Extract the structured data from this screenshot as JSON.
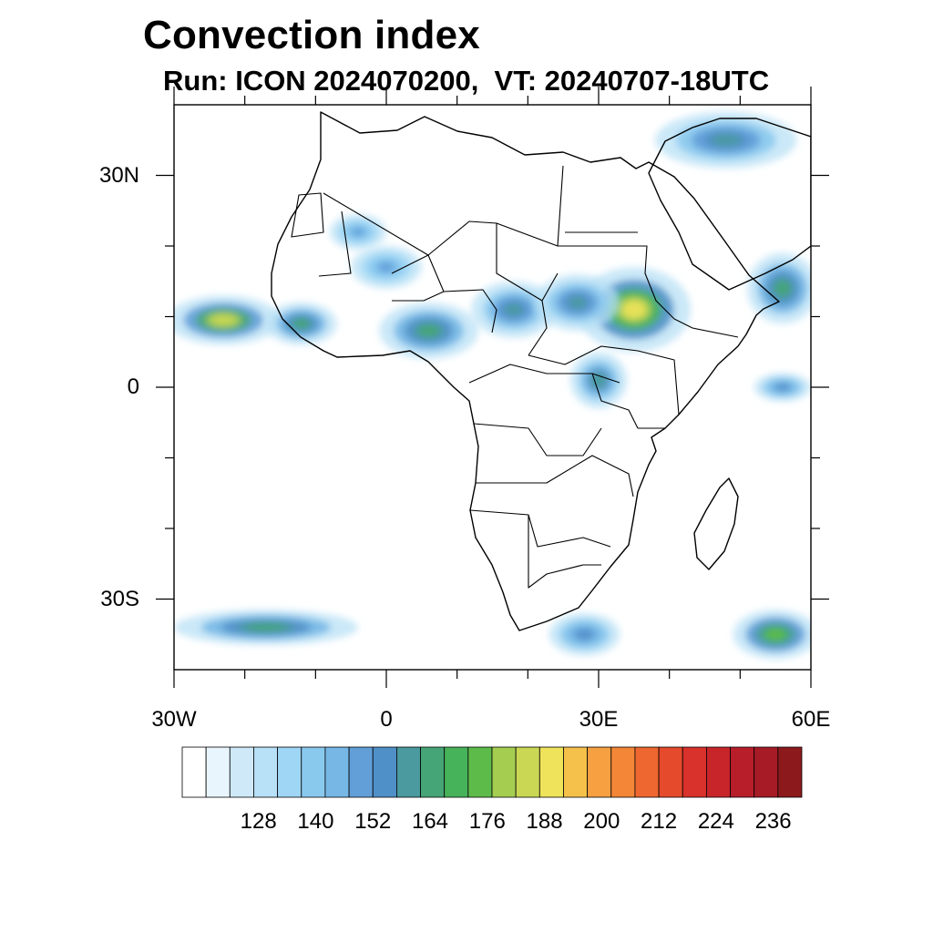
{
  "title": "Convection index",
  "subtitle": "Run: ICON 2024070200,  VT: 20240707-18UTC",
  "map": {
    "lon_range": [
      -30,
      60
    ],
    "lat_range": [
      -40,
      40
    ],
    "x_ticks": [
      {
        "value": -30,
        "label": "30W"
      },
      {
        "value": 0,
        "label": "0"
      },
      {
        "value": 30,
        "label": "30E"
      },
      {
        "value": 60,
        "label": "60E"
      }
    ],
    "y_ticks": [
      {
        "value": 30,
        "label": "30N"
      },
      {
        "value": 0,
        "label": "0"
      },
      {
        "value": -30,
        "label": "30S"
      }
    ],
    "minor_x_ticks": [
      -20,
      -10,
      10,
      20,
      40,
      50
    ],
    "minor_y_ticks": [
      20,
      10,
      -10,
      -20
    ]
  },
  "colorbar": {
    "colors": [
      "#ffffff",
      "#e8f5fc",
      "#cfe9f8",
      "#b8e0f6",
      "#9fd6f5",
      "#8ac9ee",
      "#76b7e6",
      "#629fd8",
      "#5090c8",
      "#4a9aa0",
      "#45a576",
      "#46b25a",
      "#5dbb4a",
      "#a5ce51",
      "#cad754",
      "#eee35a",
      "#f6c14b",
      "#f6a041",
      "#f38637",
      "#ee6730",
      "#e54a2c",
      "#d9312b",
      "#c8252b",
      "#b81d2a",
      "#a61b26",
      "#8c1a1d"
    ],
    "labels": [
      "128",
      "140",
      "152",
      "164",
      "176",
      "188",
      "200",
      "212",
      "224",
      "236"
    ]
  },
  "fields": [
    {
      "name": "atlantic-itcz-band",
      "lon": -23,
      "lat": 9.5,
      "rlon": 8,
      "rlat": 3.5,
      "level": 0.85
    },
    {
      "name": "guinea-coast",
      "lon": -12,
      "lat": 9,
      "rlon": 5,
      "rlat": 3,
      "level": 0.6
    },
    {
      "name": "ghana-nigeria",
      "lon": 6,
      "lat": 8,
      "rlon": 7,
      "rlat": 4,
      "level": 0.55
    },
    {
      "name": "chad-basin",
      "lon": 18,
      "lat": 11,
      "rlon": 6,
      "rlat": 4,
      "level": 0.4
    },
    {
      "name": "ethiopian-highlands",
      "lon": 35,
      "lat": 11,
      "rlon": 8,
      "rlat": 6,
      "level": 0.9
    },
    {
      "name": "sudan-sahel",
      "lon": 27,
      "lat": 12,
      "rlon": 6,
      "rlat": 4,
      "level": 0.45
    },
    {
      "name": "great-lakes",
      "lon": 30,
      "lat": 1,
      "rlon": 4,
      "rlat": 4,
      "level": 0.5
    },
    {
      "name": "arabian-sea",
      "lon": 56,
      "lat": 14,
      "rlon": 5,
      "rlat": 5,
      "level": 0.55
    },
    {
      "name": "middle-east-north",
      "lon": 48,
      "lat": 35,
      "rlon": 10,
      "rlat": 4,
      "level": 0.45
    },
    {
      "name": "indian-ocean-east",
      "lon": 56,
      "lat": 0,
      "rlon": 4,
      "rlat": 2,
      "level": 0.35
    },
    {
      "name": "south-atlantic-front",
      "lon": -17,
      "lat": -34,
      "rlon": 13,
      "rlat": 2.5,
      "level": 0.55
    },
    {
      "name": "south-africa-front",
      "lon": 28,
      "lat": -35,
      "rlon": 5,
      "rlat": 3,
      "level": 0.35
    },
    {
      "name": "indian-ocean-south",
      "lon": 55,
      "lat": -35,
      "rlon": 6,
      "rlat": 3.5,
      "level": 0.7
    },
    {
      "name": "mali-niger",
      "lon": 0,
      "lat": 17,
      "rlon": 5,
      "rlat": 3,
      "level": 0.3
    },
    {
      "name": "sahara-cells",
      "lon": -4,
      "lat": 22,
      "rlon": 4,
      "rlat": 2.5,
      "level": 0.25
    }
  ]
}
